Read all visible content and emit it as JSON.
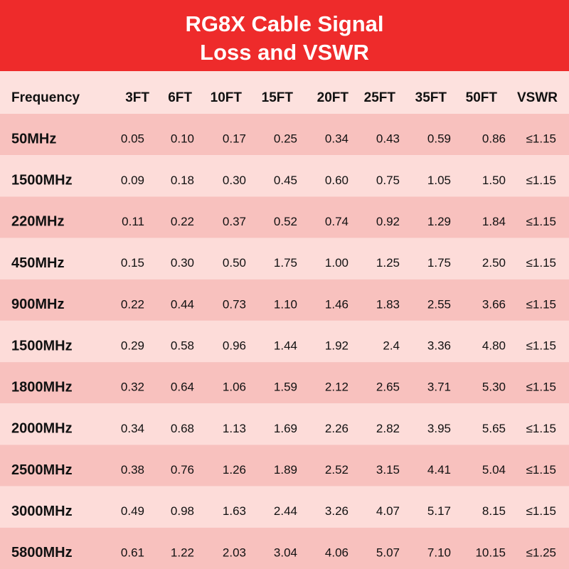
{
  "title": [
    "RG8X  Cable Signal",
    "Loss and VSWR"
  ],
  "table": {
    "header": [
      "Frequency",
      "3FT",
      "6FT",
      "10FT",
      "15FT",
      "20FT",
      "25FT",
      "35FT",
      "50FT",
      "VSWR"
    ],
    "rows": [
      [
        "50MHz",
        "0.05",
        "0.10",
        "0.17",
        "0.25",
        "0.34",
        "0.43",
        "0.59",
        "0.86",
        "≤1.15"
      ],
      [
        "1500MHz",
        "0.09",
        "0.18",
        "0.30",
        "0.45",
        "0.60",
        "0.75",
        "1.05",
        "1.50",
        "≤1.15"
      ],
      [
        "220MHz",
        "0.11",
        "0.22",
        "0.37",
        "0.52",
        "0.74",
        "0.92",
        "1.29",
        "1.84",
        "≤1.15"
      ],
      [
        "450MHz",
        "0.15",
        "0.30",
        "0.50",
        "1.75",
        "1.00",
        "1.25",
        "1.75",
        "2.50",
        "≤1.15"
      ],
      [
        "900MHz",
        "0.22",
        "0.44",
        "0.73",
        "1.10",
        "1.46",
        "1.83",
        "2.55",
        "3.66",
        "≤1.15"
      ],
      [
        "1500MHz",
        "0.29",
        "0.58",
        "0.96",
        "1.44",
        "1.92",
        "2.4",
        "3.36",
        "4.80",
        "≤1.15"
      ],
      [
        "1800MHz",
        "0.32",
        "0.64",
        "1.06",
        "1.59",
        "2.12",
        "2.65",
        "3.71",
        "5.30",
        "≤1.15"
      ],
      [
        "2000MHz",
        "0.34",
        "0.68",
        "1.13",
        "1.69",
        "2.26",
        "2.82",
        "3.95",
        "5.65",
        "≤1.15"
      ],
      [
        "2500MHz",
        "0.38",
        "0.76",
        "1.26",
        "1.89",
        "2.52",
        "3.15",
        "4.41",
        "5.04",
        "≤1.15"
      ],
      [
        "3000MHz",
        "0.49",
        "0.98",
        "1.63",
        "2.44",
        "3.26",
        "4.07",
        "5.17",
        "8.15",
        "≤1.15"
      ],
      [
        "5800MHz",
        "0.61",
        "1.22",
        "2.03",
        "3.04",
        "4.06",
        "5.07",
        "7.10",
        "10.15",
        "≤1.25"
      ]
    ]
  }
}
